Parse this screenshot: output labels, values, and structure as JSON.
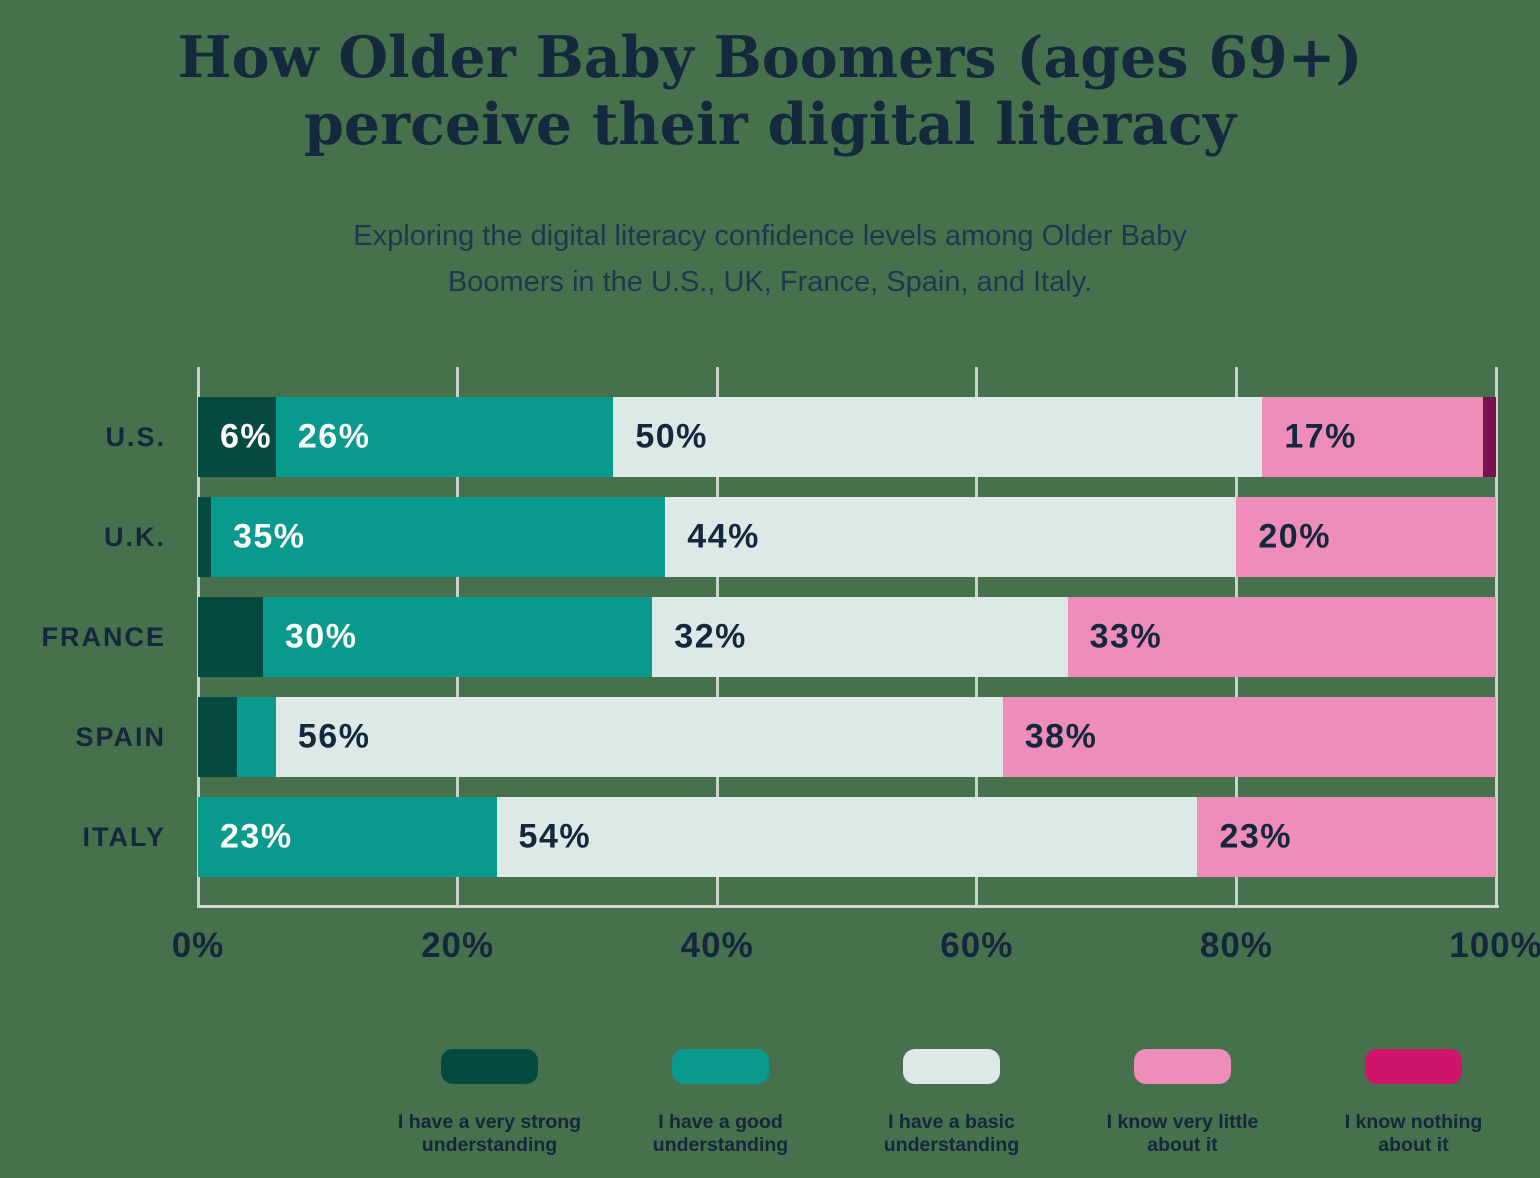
{
  "header": {
    "title_line1": "How Older Baby Boomers (ages 69+)",
    "title_line2": "perceive their digital literacy",
    "subtitle_line1": "Exploring the digital literacy confidence levels among Older Baby",
    "subtitle_line2": "Boomers in the U.S., UK, France, Spain, and Italy."
  },
  "colors": {
    "background": "#47704d",
    "gridline": "#c9d3cd",
    "axis_line": "#ced7d1",
    "navy_text": "#13283c",
    "title_navy": "#15293d"
  },
  "chart_data": {
    "type": "bar",
    "orientation": "horizontal",
    "stacked": true,
    "title": "How Older Baby Boomers (ages 69+) perceive their digital literacy",
    "value_unit": "%",
    "xlim": [
      0,
      100
    ],
    "grid": true,
    "legend_position": "bottom",
    "x_ticks": [
      "0%",
      "20%",
      "40%",
      "60%",
      "80%",
      "100%"
    ],
    "categories": [
      "U.S.",
      "U.K.",
      "FRANCE",
      "SPAIN",
      "ITALY"
    ],
    "category_keys": [
      "us",
      "uk",
      "france",
      "spain",
      "italy"
    ],
    "series": [
      {
        "key": "very-strong",
        "name": "I have a very strong understanding",
        "legend_line1": "I have a very strong",
        "legend_line2": "understanding",
        "color": "#054a40",
        "legend_color": "#054a40",
        "label_color": "#ffffff",
        "values": [
          6,
          1,
          5,
          3,
          0
        ]
      },
      {
        "key": "good",
        "name": "I have a good understanding",
        "legend_line1": "I have a good",
        "legend_line2": "understanding",
        "color": "#099a8d",
        "legend_color": "#099a8d",
        "label_color": "#ffffff",
        "values": [
          26,
          35,
          30,
          3,
          23
        ]
      },
      {
        "key": "basic",
        "name": "I have a basic understanding",
        "legend_line1": "I have a basic",
        "legend_line2": "understanding",
        "color": "#dde9e6",
        "legend_color": "#dde9e6",
        "label_color": "#13283c",
        "values": [
          50,
          44,
          32,
          56,
          54
        ]
      },
      {
        "key": "very-little",
        "name": "I know very little about it",
        "legend_line1": "I know very little",
        "legend_line2": "about it",
        "color": "#ee8cba",
        "legend_color": "#ee8cba",
        "label_color": "#13283c",
        "values": [
          17,
          20,
          33,
          38,
          23
        ]
      },
      {
        "key": "nothing",
        "name": "I know nothing about it",
        "legend_line1": "I know nothing",
        "legend_line2": "about it",
        "color": "#7a1052",
        "legend_color": "#cf146b",
        "label_color": "#ffffff",
        "values": [
          1,
          0,
          0,
          0,
          0
        ]
      }
    ],
    "segment_labels": [
      [
        "6%",
        "26%",
        "50%",
        "17%",
        null
      ],
      [
        null,
        "35%",
        "44%",
        "20%",
        null
      ],
      [
        null,
        "30%",
        "32%",
        "33%",
        null
      ],
      [
        null,
        null,
        "56%",
        "38%",
        null
      ],
      [
        null,
        "23%",
        "54%",
        "23%",
        null
      ]
    ]
  }
}
